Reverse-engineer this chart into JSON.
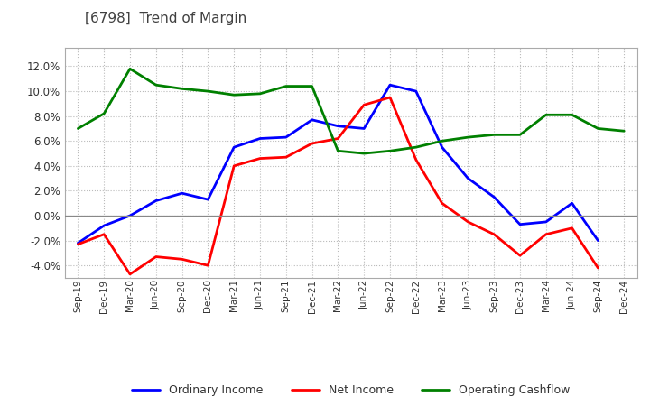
{
  "title": "[6798]  Trend of Margin",
  "x_labels": [
    "Sep-19",
    "Dec-19",
    "Mar-20",
    "Jun-20",
    "Sep-20",
    "Dec-20",
    "Mar-21",
    "Jun-21",
    "Sep-21",
    "Dec-21",
    "Mar-22",
    "Jun-22",
    "Sep-22",
    "Dec-22",
    "Mar-23",
    "Jun-23",
    "Sep-23",
    "Dec-23",
    "Mar-24",
    "Jun-24",
    "Sep-24",
    "Dec-24"
  ],
  "ordinary_income": [
    -2.2,
    -0.8,
    0.0,
    1.2,
    1.8,
    1.3,
    5.5,
    6.2,
    6.3,
    7.7,
    7.2,
    7.0,
    10.5,
    10.0,
    5.5,
    3.0,
    1.5,
    -0.7,
    -0.5,
    1.0,
    -2.0,
    null
  ],
  "net_income": [
    -2.3,
    -1.5,
    -4.7,
    -3.3,
    -3.5,
    -4.0,
    4.0,
    4.6,
    4.7,
    5.8,
    6.2,
    8.9,
    9.5,
    4.5,
    1.0,
    -0.5,
    -1.5,
    -3.2,
    -1.5,
    -1.0,
    -4.2,
    null
  ],
  "operating_cashflow": [
    7.0,
    8.2,
    11.8,
    10.5,
    10.2,
    10.0,
    9.7,
    9.8,
    10.4,
    10.4,
    5.2,
    5.0,
    5.2,
    5.5,
    6.0,
    6.3,
    6.5,
    6.5,
    8.1,
    8.1,
    7.0,
    6.8
  ],
  "ordinary_income_color": "#0000FF",
  "net_income_color": "#FF0000",
  "operating_cashflow_color": "#008000",
  "ylim": [
    -5.0,
    13.5
  ],
  "yticks": [
    -4.0,
    -2.0,
    0.0,
    2.0,
    4.0,
    6.0,
    8.0,
    10.0,
    12.0
  ],
  "title_color": "#404040",
  "bg_color": "#FFFFFF",
  "plot_bg_color": "#FFFFFF",
  "grid_color": "#AAAAAA",
  "linewidth": 2.0
}
